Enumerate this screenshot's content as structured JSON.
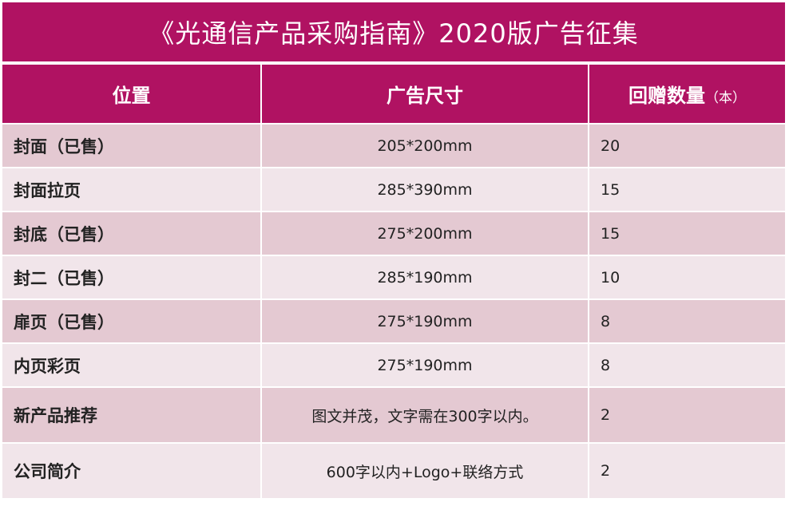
{
  "title": "《光通信产品采购指南》2020版广告征集",
  "headers": {
    "position": "位置",
    "size": "广告尺寸",
    "quantity": "回赠数量",
    "quantity_unit": "（本）"
  },
  "rows": [
    {
      "position": "封面（已售）",
      "size": "205*200mm",
      "quantity": "20"
    },
    {
      "position": "封面拉页",
      "size": "285*390mm",
      "quantity": "15"
    },
    {
      "position": "封底（已售）",
      "size": "275*200mm",
      "quantity": "15"
    },
    {
      "position": "封二（已售）",
      "size": "285*190mm",
      "quantity": "10"
    },
    {
      "position": "扉页（已售）",
      "size": "275*190mm",
      "quantity": "8"
    },
    {
      "position": "内页彩页",
      "size": "275*190mm",
      "quantity": "8"
    },
    {
      "position": "新产品推荐",
      "size": "图文并茂，文字需在300字以内。",
      "quantity": "2"
    },
    {
      "position": "公司简介",
      "size": "600字以内+Logo+联络方式",
      "quantity": "2"
    }
  ],
  "colors": {
    "header_bg": "#b01262",
    "row_odd": "#e4c9d2",
    "row_even": "#f1e5ea"
  }
}
